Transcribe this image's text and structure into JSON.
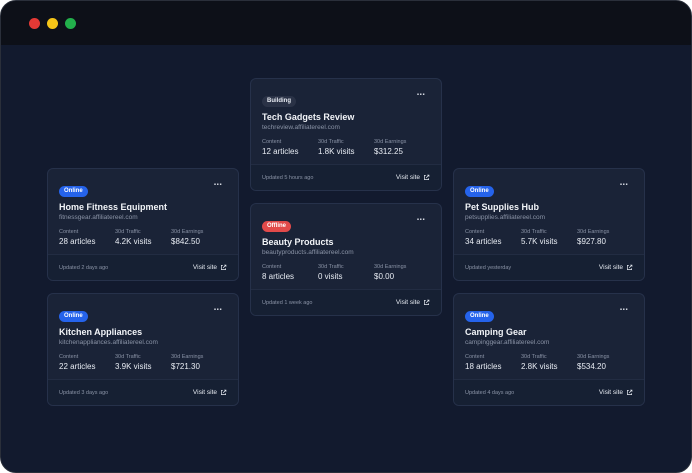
{
  "cards": [
    {
      "status": "Building",
      "name": "Tech Gadgets Review",
      "domain": "techreview.affiliatereel.com",
      "content": "12 articles",
      "traffic": "1.8K visits",
      "earnings": "$312.25",
      "updated": "Updated 5 hours ago"
    },
    {
      "status": "Online",
      "name": "Home Fitness Equipment",
      "domain": "fitnessgear.affiliatereel.com",
      "content": "28 articles",
      "traffic": "4.2K visits",
      "earnings": "$842.50",
      "updated": "Updated 2 days ago"
    },
    {
      "status": "Offline",
      "name": "Beauty Products",
      "domain": "beautyproducts.affiliatereel.com",
      "content": "8 articles",
      "traffic": "0 visits",
      "earnings": "$0.00",
      "updated": "Updated 1 week ago"
    },
    {
      "status": "Online",
      "name": "Pet Supplies Hub",
      "domain": "petsupplies.affiliatereel.com",
      "content": "34 articles",
      "traffic": "5.7K visits",
      "earnings": "$927.80",
      "updated": "Updated yesterday"
    },
    {
      "status": "Online",
      "name": "Kitchen Appliances",
      "domain": "kitchenappliances.affiliatereel.com",
      "content": "22 articles",
      "traffic": "3.9K visits",
      "earnings": "$721.30",
      "updated": "Updated 3 days ago"
    },
    {
      "status": "Online",
      "name": "Camping Gear",
      "domain": "campinggear.affiliatereel.com",
      "content": "18 articles",
      "traffic": "2.8K visits",
      "earnings": "$534.20",
      "updated": "Updated 4 days ago"
    }
  ],
  "labels": {
    "content": "Content",
    "traffic": "30d Traffic",
    "earnings": "30d Earnings",
    "visit": "Visit site",
    "more": "..."
  },
  "colors": {
    "online": "#2563eb",
    "offline": "#e24a4a",
    "building": "#2a3246",
    "background": "#121a2e",
    "card": "#1a2337"
  },
  "icons": {
    "external": "external-link-icon",
    "more": "more-options-icon"
  }
}
